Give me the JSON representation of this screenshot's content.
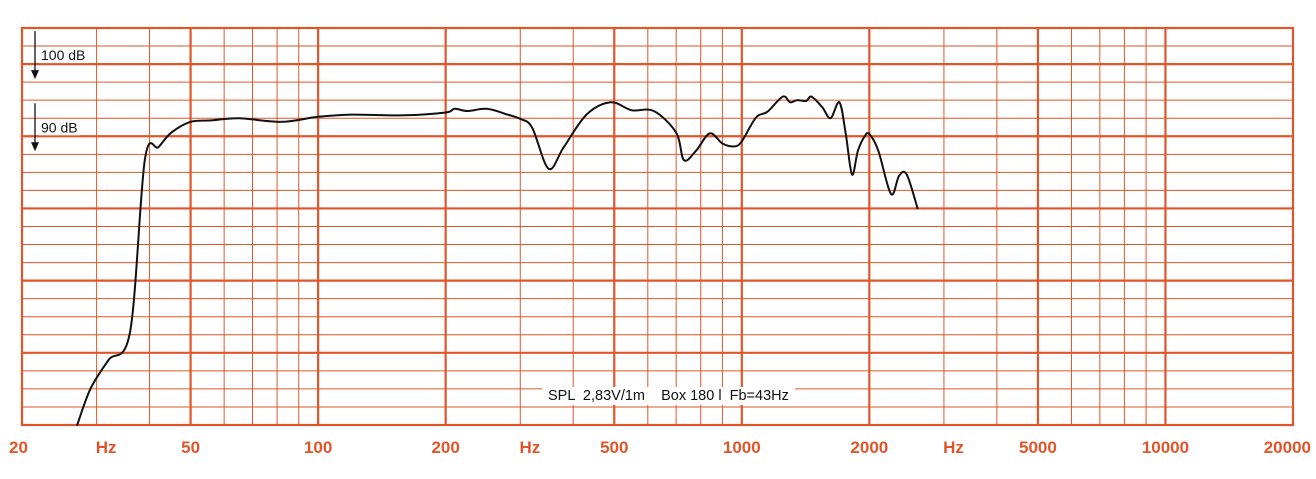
{
  "chart_data": {
    "type": "line",
    "title": "",
    "xlabel": "Hz",
    "ylabel": "",
    "x_scale": "log",
    "xlim": [
      20,
      20000
    ],
    "ylim": [
      50,
      105
    ],
    "grid": true,
    "colors": {
      "grid": "#e0562a",
      "curve": "#111111",
      "tick_labels": "#e0562a"
    },
    "x_tick_labels": [
      {
        "value": 20,
        "label": "20"
      },
      {
        "value": 50,
        "label": "50"
      },
      {
        "value": 100,
        "label": "100"
      },
      {
        "value": 200,
        "label": "200"
      },
      {
        "value": 500,
        "label": "500"
      },
      {
        "value": 1000,
        "label": "1000"
      },
      {
        "value": 2000,
        "label": "2000"
      },
      {
        "value": 5000,
        "label": "5000"
      },
      {
        "value": 10000,
        "label": "10000"
      },
      {
        "value": 20000,
        "label": "20000"
      }
    ],
    "unit_labels": [
      {
        "value": 31.6,
        "label": "Hz"
      },
      {
        "value": 316,
        "label": "Hz"
      },
      {
        "value": 3160,
        "label": "Hz"
      }
    ],
    "db_labels": [
      {
        "value": 100,
        "label": "100 dB"
      },
      {
        "value": 90,
        "label": "90 dB"
      }
    ],
    "annotation": "SPL  2,83V/1m    Box 180 l  Fb=43Hz",
    "series": [
      {
        "values": [
          [
            27,
            50.0
          ],
          [
            29,
            55.0
          ],
          [
            32,
            59.0
          ],
          [
            36,
            63.0
          ],
          [
            39,
            86.8
          ],
          [
            42,
            88.5
          ],
          [
            45,
            90.5
          ],
          [
            50,
            92.0
          ],
          [
            56,
            92.2
          ],
          [
            65,
            92.5
          ],
          [
            82,
            92.0
          ],
          [
            100,
            92.7
          ],
          [
            120,
            93.0
          ],
          [
            160,
            92.9
          ],
          [
            200,
            93.3
          ],
          [
            210,
            93.8
          ],
          [
            225,
            93.5
          ],
          [
            250,
            93.8
          ],
          [
            280,
            93.0
          ],
          [
            300,
            92.4
          ],
          [
            320,
            91.2
          ],
          [
            350,
            85.5
          ],
          [
            380,
            88.5
          ],
          [
            430,
            93.0
          ],
          [
            490,
            94.7
          ],
          [
            550,
            93.6
          ],
          [
            620,
            93.5
          ],
          [
            700,
            90.5
          ],
          [
            730,
            86.7
          ],
          [
            780,
            88.0
          ],
          [
            840,
            90.4
          ],
          [
            900,
            89.0
          ],
          [
            960,
            88.6
          ],
          [
            1000,
            89.3
          ],
          [
            1080,
            92.6
          ],
          [
            1150,
            93.4
          ],
          [
            1250,
            95.5
          ],
          [
            1300,
            94.7
          ],
          [
            1350,
            95.0
          ],
          [
            1420,
            94.9
          ],
          [
            1460,
            95.5
          ],
          [
            1550,
            94.0
          ],
          [
            1620,
            92.5
          ],
          [
            1700,
            94.7
          ],
          [
            1760,
            90.3
          ],
          [
            1820,
            84.7
          ],
          [
            1880,
            88.0
          ],
          [
            1950,
            90.0
          ],
          [
            2000,
            90.3
          ],
          [
            2100,
            88.0
          ],
          [
            2250,
            82.0
          ],
          [
            2350,
            84.5
          ],
          [
            2450,
            84.7
          ],
          [
            2600,
            80.0
          ]
        ]
      }
    ]
  }
}
